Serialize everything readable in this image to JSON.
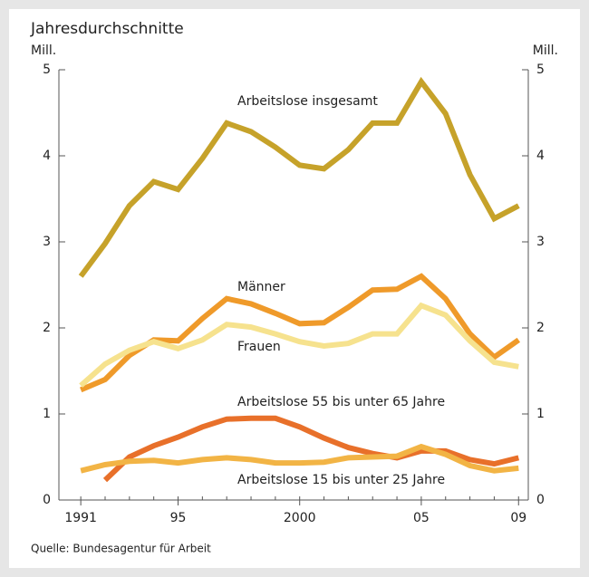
{
  "chart_data": {
    "type": "line",
    "title": "Jahresdurchschnitte",
    "y_axis_label": "Mill.",
    "y2_axis_label": "Mill.",
    "source": "Quelle: Bundesagentur für Arbeit",
    "x": [
      1991,
      1992,
      1993,
      1994,
      1995,
      1996,
      1997,
      1998,
      1999,
      2000,
      2001,
      2002,
      2003,
      2004,
      2005,
      2006,
      2007,
      2008,
      2009
    ],
    "xlim": [
      1990.1,
      2009.4
    ],
    "xticks": [
      1991,
      {
        "value": 1995,
        "label": "95"
      },
      2000,
      {
        "value": 2005,
        "label": "05"
      },
      {
        "value": 2009,
        "label": "09"
      }
    ],
    "ylim": [
      0,
      5
    ],
    "yticks": [
      0,
      1,
      2,
      3,
      4,
      5
    ],
    "y2lim": [
      0,
      5
    ],
    "y2ticks": [
      0,
      1,
      2,
      3,
      4,
      5
    ],
    "grid": false,
    "series": [
      {
        "name": "Arbeitslose insgesamt",
        "color": "#c6a22a",
        "values": [
          2.6,
          2.98,
          3.42,
          3.7,
          3.61,
          3.97,
          4.38,
          4.28,
          4.1,
          3.89,
          3.85,
          4.07,
          4.38,
          4.38,
          4.86,
          4.49,
          3.78,
          3.27,
          3.42
        ]
      },
      {
        "name": "Männer",
        "color": "#ef9a2a",
        "values": [
          1.28,
          1.4,
          1.68,
          1.86,
          1.85,
          2.11,
          2.34,
          2.28,
          2.17,
          2.05,
          2.06,
          2.24,
          2.44,
          2.45,
          2.6,
          2.34,
          1.93,
          1.66,
          1.86
        ]
      },
      {
        "name": "Frauen",
        "color": "#f6e28e",
        "values": [
          1.33,
          1.58,
          1.74,
          1.84,
          1.76,
          1.86,
          2.04,
          2.01,
          1.93,
          1.84,
          1.79,
          1.82,
          1.93,
          1.93,
          2.26,
          2.15,
          1.85,
          1.6,
          1.55
        ]
      },
      {
        "name": "Arbeitslose 55 bis unter 65 Jahre",
        "color": "#e8702a",
        "values": [
          null,
          0.23,
          0.5,
          0.63,
          0.73,
          0.85,
          0.94,
          0.95,
          0.95,
          0.85,
          0.72,
          0.61,
          0.54,
          0.49,
          0.57,
          0.57,
          0.47,
          0.42,
          0.49
        ]
      },
      {
        "name": "Arbeitslose 15 bis unter 25 Jahre",
        "color": "#f2b445",
        "values": [
          0.34,
          0.41,
          0.45,
          0.46,
          0.43,
          0.47,
          0.49,
          0.47,
          0.43,
          0.43,
          0.44,
          0.49,
          0.5,
          0.51,
          0.62,
          0.53,
          0.4,
          0.34,
          0.37
        ]
      }
    ]
  }
}
